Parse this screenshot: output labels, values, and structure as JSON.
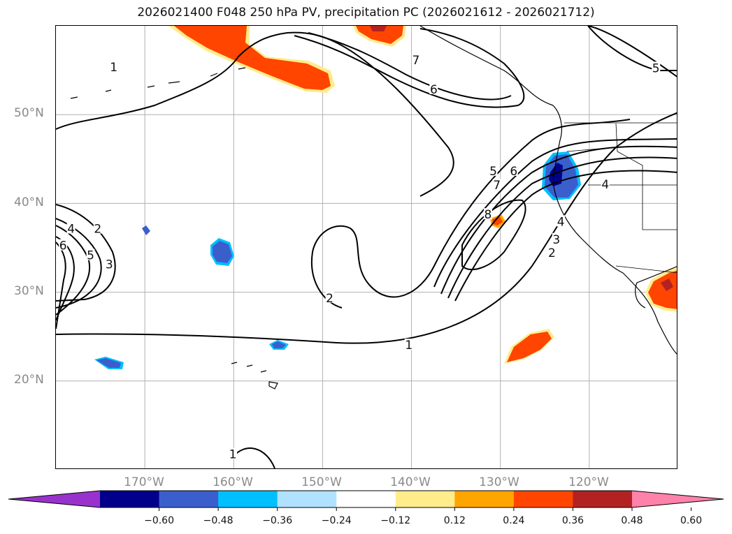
{
  "title": "2026021400 F048 250 hPa PV, precipitation PC (2026021612 - 2026021712)",
  "map": {
    "projection": "plate-carree",
    "lon_range": [
      -180,
      -110
    ],
    "lat_range": [
      10,
      60
    ],
    "grid": true,
    "lat_labels": [
      "50°N",
      "40°N",
      "30°N",
      "20°N"
    ],
    "lon_labels": [
      "170°W",
      "160°W",
      "150°W",
      "140°W",
      "130°W",
      "120°W"
    ],
    "pv_contour_labels": [
      {
        "text": "1",
        "lon": -173.5,
        "lat": 55.2
      },
      {
        "text": "7",
        "lon": -139.5,
        "lat": 56.0
      },
      {
        "text": "6",
        "lon": -137.5,
        "lat": 52.7
      },
      {
        "text": "5",
        "lon": -112.5,
        "lat": 55.1
      },
      {
        "text": "5",
        "lon": -130.8,
        "lat": 43.5
      },
      {
        "text": "6",
        "lon": -128.5,
        "lat": 43.5
      },
      {
        "text": "7",
        "lon": -130.4,
        "lat": 41.9
      },
      {
        "text": "8",
        "lon": -131.4,
        "lat": 38.6
      },
      {
        "text": "4",
        "lon": -118.2,
        "lat": 42.0
      },
      {
        "text": "4",
        "lon": -123.2,
        "lat": 37.8
      },
      {
        "text": "3",
        "lon": -123.7,
        "lat": 35.8
      },
      {
        "text": "2",
        "lon": -124.2,
        "lat": 34.3
      },
      {
        "text": "4",
        "lon": -178.3,
        "lat": 37.0
      },
      {
        "text": "2",
        "lon": -175.3,
        "lat": 37.0
      },
      {
        "text": "6",
        "lon": -179.2,
        "lat": 35.1
      },
      {
        "text": "5",
        "lon": -176.1,
        "lat": 34.0
      },
      {
        "text": "3",
        "lon": -174.0,
        "lat": 33.0
      },
      {
        "text": "2",
        "lon": -149.2,
        "lat": 29.2
      },
      {
        "text": "1",
        "lon": -140.3,
        "lat": 23.9
      },
      {
        "text": "1",
        "lon": -160.1,
        "lat": 11.6
      }
    ]
  },
  "colorbar": {
    "colors": [
      "#9932cc",
      "#00008b",
      "#3a5fcd",
      "#00bfff",
      "#b0e2ff",
      "#ffffff",
      "#ffec8b",
      "#ffa500",
      "#ff4500",
      "#b22222",
      "#ff82ab"
    ],
    "ticks": [
      "−0.60",
      "−0.48",
      "−0.36",
      "−0.24",
      "−0.12",
      "0.12",
      "0.24",
      "0.36",
      "0.48",
      "0.60"
    ],
    "extend": "both"
  }
}
